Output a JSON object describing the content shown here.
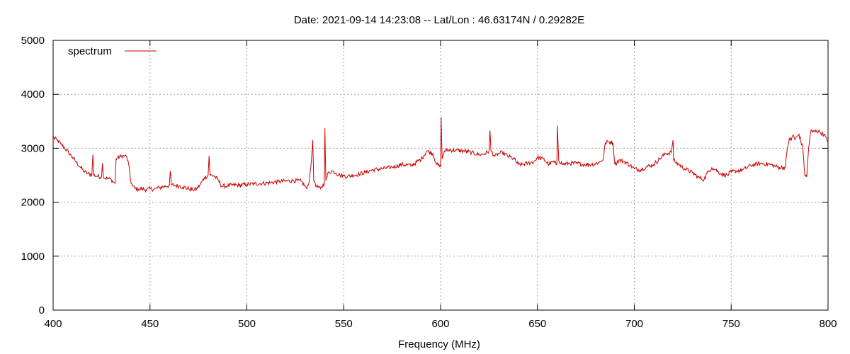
{
  "chart_data": {
    "type": "line",
    "title": "Date: 2021-09-14 14:23:08  --  Lat/Lon : 46.63174N / 0.29282E",
    "xlabel": "Frequency (MHz)",
    "ylabel": "",
    "xlim": [
      400,
      800
    ],
    "ylim": [
      0,
      5000
    ],
    "xticks": [
      400,
      450,
      500,
      550,
      600,
      650,
      700,
      750,
      800
    ],
    "yticks": [
      0,
      1000,
      2000,
      3000,
      4000,
      5000
    ],
    "grid": true,
    "legend_position": "top-left",
    "series": [
      {
        "name": "spectrum",
        "color": "#cc0000",
        "x": [
          400,
          402,
          404,
          406,
          408,
          410,
          412,
          414,
          416,
          418,
          420,
          420.5,
          421,
          423,
          425,
          425.5,
          426,
          428,
          430,
          431,
          432,
          432.5,
          433,
          435,
          437,
          438,
          439,
          440,
          441,
          442,
          444,
          446,
          448,
          450,
          452,
          455,
          458,
          460,
          460.5,
          461,
          463,
          465,
          467,
          470,
          472,
          474,
          476,
          478,
          480,
          480.5,
          481,
          483,
          485,
          487,
          490,
          493,
          496,
          500,
          504,
          508,
          512,
          516,
          520,
          524,
          528,
          530,
          531,
          532,
          533,
          534,
          534.5,
          535,
          536,
          538,
          540,
          540.3,
          540.8,
          542,
          544,
          546,
          548,
          550,
          552,
          555,
          558,
          561,
          565,
          570,
          575,
          580,
          585,
          590,
          593,
          596,
          598,
          600,
          600.3,
          600.8,
          602,
          604,
          608,
          612,
          616,
          620,
          623,
          625,
          625.5,
          626,
          628,
          630,
          632,
          635,
          638,
          640,
          642,
          645,
          648,
          650,
          653,
          656,
          658,
          660,
          660.3,
          661,
          663,
          666,
          670,
          674,
          678,
          682,
          684,
          685,
          687,
          689,
          690,
          692,
          695,
          698,
          700,
          703,
          706,
          710,
          713,
          716,
          719,
          720,
          720.3,
          721,
          723,
          726,
          730,
          733,
          736,
          738,
          740,
          742,
          745,
          748,
          750,
          753,
          756,
          760,
          765,
          770,
          775,
          778,
          779,
          780,
          781,
          782,
          783,
          785,
          787,
          788,
          789,
          790,
          791,
          792,
          794,
          796,
          798,
          800
        ],
        "values": [
          3200,
          3150,
          3080,
          3000,
          2920,
          2830,
          2740,
          2650,
          2570,
          2530,
          2510,
          2880,
          2500,
          2480,
          2470,
          2720,
          2460,
          2440,
          2420,
          2380,
          2350,
          2800,
          2820,
          2850,
          2860,
          2840,
          2700,
          2400,
          2300,
          2260,
          2240,
          2250,
          2230,
          2250,
          2240,
          2270,
          2300,
          2310,
          2580,
          2320,
          2310,
          2300,
          2280,
          2250,
          2230,
          2240,
          2330,
          2450,
          2500,
          2860,
          2500,
          2490,
          2420,
          2300,
          2300,
          2320,
          2310,
          2330,
          2340,
          2350,
          2360,
          2380,
          2390,
          2400,
          2390,
          2300,
          2250,
          2350,
          2650,
          3150,
          2400,
          2380,
          2290,
          2250,
          2350,
          3370,
          2400,
          2550,
          2580,
          2540,
          2500,
          2490,
          2480,
          2500,
          2520,
          2550,
          2600,
          2620,
          2650,
          2700,
          2680,
          2800,
          2950,
          2900,
          2700,
          2650,
          3580,
          2800,
          2950,
          2970,
          2960,
          2950,
          2920,
          2880,
          2900,
          2950,
          3330,
          2950,
          2850,
          2900,
          2920,
          2850,
          2800,
          2700,
          2700,
          2720,
          2750,
          2830,
          2800,
          2700,
          2750,
          2700,
          3420,
          2780,
          2700,
          2720,
          2720,
          2700,
          2700,
          2740,
          2800,
          3100,
          3120,
          3100,
          2700,
          2780,
          2750,
          2680,
          2620,
          2600,
          2650,
          2700,
          2800,
          2900,
          2920,
          3150,
          2780,
          2750,
          2700,
          2620,
          2550,
          2460,
          2420,
          2560,
          2640,
          2600,
          2520,
          2500,
          2560,
          2580,
          2600,
          2680,
          2720,
          2700,
          2640,
          2650,
          3000,
          3180,
          3150,
          3250,
          3160,
          3260,
          3000,
          2500,
          2470,
          3000,
          3320,
          3300,
          3330,
          3290,
          3260,
          3100
        ]
      }
    ]
  }
}
